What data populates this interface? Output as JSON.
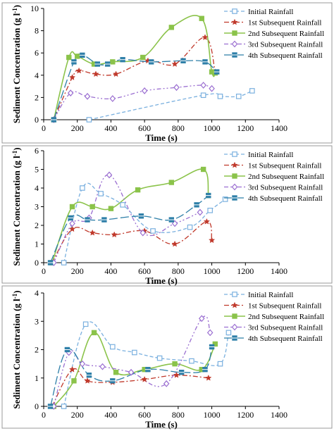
{
  "legend_labels": [
    "Initial Rainfall",
    "1st Subsequent Rainfall",
    "2nd Subsequent Rainfall",
    "3rd Subsequent Rainfall",
    "4th Subsequent Rainfall"
  ],
  "series_styles": [
    {
      "color": "#7ab0df",
      "dash": "5,3",
      "marker": "square-open"
    },
    {
      "color": "#c0392b",
      "dash": "7,3,2,3",
      "marker": "star"
    },
    {
      "color": "#8bc34a",
      "dash": "",
      "marker": "square-filled"
    },
    {
      "color": "#9b6fd1",
      "dash": "6,3,2,3,2,3",
      "marker": "diamond-open"
    },
    {
      "color": "#2e7fa8",
      "dash": "12,4",
      "marker": "square-bar"
    }
  ],
  "chart_data": [
    {
      "type": "line",
      "xlabel": "Time (s)",
      "ylabel": "Sediment Concentration (g l-1)",
      "xlim": [
        0,
        1400
      ],
      "ylim": [
        0,
        10
      ],
      "xticks": [
        0,
        200,
        400,
        600,
        800,
        1000,
        1200,
        1400
      ],
      "yticks": [
        0,
        2,
        4,
        6,
        8,
        10
      ],
      "series": [
        {
          "name": "Initial Rainfall",
          "x": [
            270,
            950,
            1050,
            1160,
            1240
          ],
          "y": [
            0,
            2.2,
            2.1,
            2.1,
            2.6
          ]
        },
        {
          "name": "1st Subsequent Rainfall",
          "x": [
            60,
            170,
            210,
            310,
            430,
            620,
            780,
            960,
            1020
          ],
          "y": [
            0,
            3.8,
            4.4,
            4.1,
            4.1,
            5.3,
            5.0,
            7.4,
            4.3
          ]
        },
        {
          "name": "2nd Subsequent Rainfall",
          "x": [
            60,
            150,
            200,
            300,
            410,
            590,
            760,
            940,
            1000,
            1020
          ],
          "y": [
            0,
            5.6,
            5.7,
            5.0,
            5.2,
            5.6,
            8.3,
            9.1,
            4.3,
            4.2
          ]
        },
        {
          "name": "3rd Subsequent Rainfall",
          "x": [
            60,
            160,
            260,
            410,
            600,
            790,
            950,
            1000
          ],
          "y": [
            0,
            2.4,
            2.1,
            1.9,
            2.6,
            2.9,
            3.1,
            2.8
          ]
        },
        {
          "name": "4th Subsequent Rainfall",
          "x": [
            60,
            180,
            230,
            320,
            380,
            470,
            640,
            830,
            960,
            1030
          ],
          "y": [
            0,
            5.2,
            5.8,
            5.0,
            5.0,
            5.4,
            5.2,
            5.3,
            5.2,
            4.3
          ]
        }
      ]
    },
    {
      "type": "line",
      "xlabel": "Time (s)",
      "ylabel": "Sediment Concentration (g l-1)",
      "xlim": [
        0,
        1400
      ],
      "ylim": [
        0,
        6
      ],
      "xticks": [
        0,
        200,
        400,
        600,
        800,
        1000,
        1200,
        1400
      ],
      "yticks": [
        0,
        1,
        2,
        3,
        4,
        5,
        6
      ],
      "series": [
        {
          "name": "Initial Rainfall",
          "x": [
            120,
            230,
            340,
            470,
            650,
            870,
            990,
            1080
          ],
          "y": [
            0,
            4.0,
            3.7,
            3.1,
            1.7,
            1.9,
            2.8,
            3.4
          ]
        },
        {
          "name": "1st Subsequent Rainfall",
          "x": [
            50,
            170,
            290,
            420,
            600,
            780,
            970,
            1000
          ],
          "y": [
            0,
            1.8,
            1.6,
            1.5,
            1.7,
            1.0,
            2.2,
            1.2
          ]
        },
        {
          "name": "2nd Subsequent Rainfall",
          "x": [
            50,
            170,
            290,
            400,
            560,
            760,
            950,
            980
          ],
          "y": [
            0,
            3.0,
            3.0,
            2.9,
            3.9,
            4.3,
            5.0,
            3.6
          ]
        },
        {
          "name": "3rd Subsequent Rainfall",
          "x": [
            60,
            170,
            270,
            390,
            590,
            780,
            930
          ],
          "y": [
            0,
            2.1,
            2.4,
            4.7,
            1.6,
            2.1,
            2.7
          ]
        },
        {
          "name": "4th Subsequent Rainfall",
          "x": [
            40,
            160,
            260,
            360,
            580,
            760,
            910,
            980
          ],
          "y": [
            0,
            2.4,
            2.3,
            2.3,
            2.5,
            2.3,
            3.1,
            3.6
          ]
        }
      ]
    },
    {
      "type": "line",
      "xlabel": "Time (s)",
      "ylabel": "Sediment Concentration (g l-1)",
      "xlim": [
        0,
        1400
      ],
      "ylim": [
        0,
        4
      ],
      "xticks": [
        0,
        200,
        400,
        600,
        800,
        1000,
        1200,
        1400
      ],
      "yticks": [
        0,
        1,
        2,
        3,
        4
      ],
      "series": [
        {
          "name": "Initial Rainfall",
          "x": [
            120,
            250,
            410,
            540,
            690,
            880,
            1050,
            1100
          ],
          "y": [
            0,
            2.9,
            2.1,
            1.9,
            1.7,
            1.6,
            1.5,
            2.6
          ]
        },
        {
          "name": "1st Subsequent Rainfall",
          "x": [
            50,
            170,
            260,
            410,
            600,
            790,
            980
          ],
          "y": [
            0,
            1.3,
            0.9,
            0.85,
            0.95,
            1.1,
            1.0
          ]
        },
        {
          "name": "2nd Subsequent Rainfall",
          "x": [
            60,
            180,
            300,
            430,
            600,
            780,
            940,
            1020
          ],
          "y": [
            0,
            0.9,
            2.6,
            1.2,
            1.3,
            1.5,
            1.3,
            2.2
          ]
        },
        {
          "name": "3rd Subsequent Rainfall",
          "x": [
            60,
            150,
            230,
            350,
            520,
            730,
            940,
            990
          ],
          "y": [
            0,
            1.9,
            1.5,
            1.4,
            1.2,
            0.8,
            3.1,
            2.6
          ]
        },
        {
          "name": "4th Subsequent Rainfall",
          "x": [
            40,
            140,
            270,
            410,
            620,
            820,
            960,
            1000
          ],
          "y": [
            0,
            2.0,
            1.1,
            0.9,
            1.3,
            1.2,
            1.3,
            2.1
          ]
        }
      ]
    }
  ]
}
